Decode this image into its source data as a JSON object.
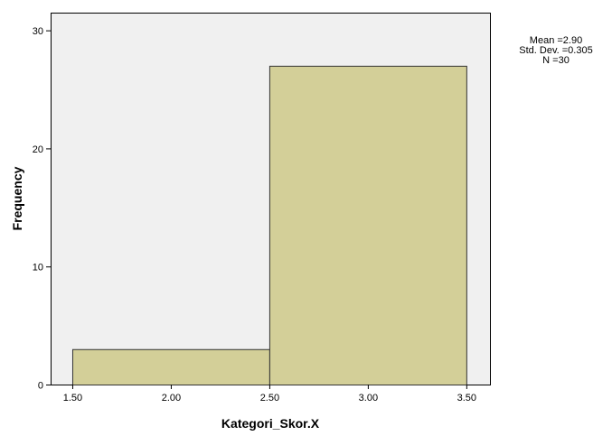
{
  "chart_data": {
    "type": "bar",
    "subtype": "histogram",
    "bins": [
      {
        "start": 1.5,
        "end": 2.5,
        "value": 3
      },
      {
        "start": 2.5,
        "end": 3.5,
        "value": 27
      }
    ],
    "xlabel": "Kategori_Skor.X",
    "ylabel": "Frequency",
    "xlim": [
      1.39,
      3.62
    ],
    "ylim": [
      0,
      31.5
    ],
    "x_ticks": [
      1.5,
      2.0,
      2.5,
      3.0,
      3.5
    ],
    "x_tick_labels": [
      "1.50",
      "2.00",
      "2.50",
      "3.00",
      "3.50"
    ],
    "y_ticks": [
      0,
      10,
      20,
      30
    ],
    "y_tick_labels": [
      "0",
      "10",
      "20",
      "30"
    ],
    "grid": false,
    "colors": {
      "bar_fill": "#d3cf98",
      "bar_stroke": "#333333",
      "plot_background": "#f0f0f0"
    },
    "stats": {
      "mean": "Mean =2.90",
      "std_dev": "Std. Dev. =0.305",
      "n": "N =30"
    }
  }
}
